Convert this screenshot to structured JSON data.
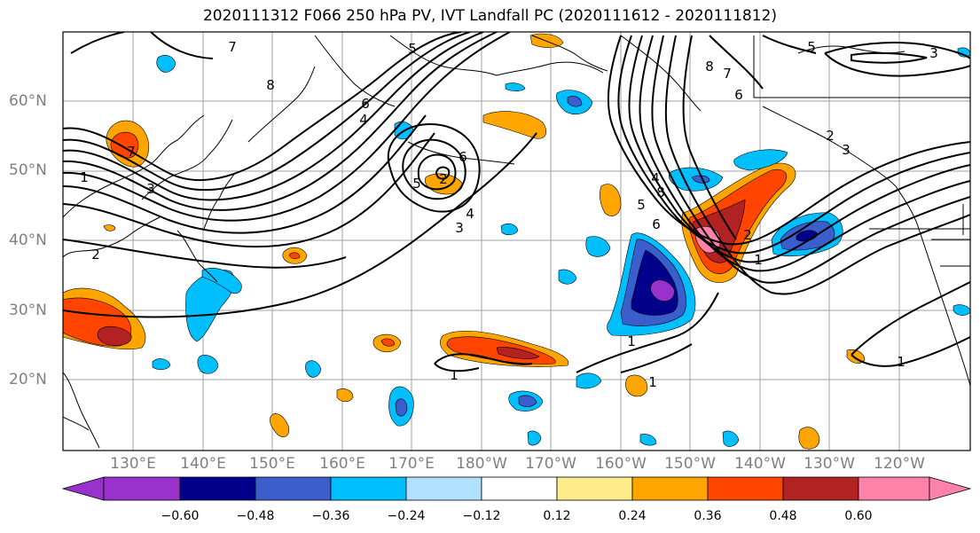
{
  "title": "2020111312 F066 250 hPa PV, IVT Landfall PC (2020111612 - 2020111812)",
  "lat_labels": [
    "60°N",
    "50°N",
    "40°N",
    "30°N",
    "20°N"
  ],
  "lon_labels": [
    "130°E",
    "140°E",
    "150°E",
    "160°E",
    "170°E",
    "180°W",
    "170°W",
    "160°W",
    "150°W",
    "140°W",
    "130°W",
    "120°W"
  ],
  "contour_labels": [
    "8",
    "7",
    "6",
    "5",
    "4",
    "3",
    "2",
    "1",
    "8",
    "7",
    "6",
    "5",
    "4",
    "3",
    "2",
    "1",
    "6",
    "5",
    "4",
    "3",
    "1",
    "1",
    "1",
    "8",
    "7",
    "6",
    "5",
    "2",
    "1",
    "2",
    "3"
  ],
  "colorbar": {
    "labels": [
      "−0.60",
      "−0.48",
      "−0.36",
      "−0.24",
      "−0.12",
      "0.12",
      "0.24",
      "0.36",
      "0.48",
      "0.60"
    ],
    "colors": [
      "#9932cc",
      "#00008b",
      "#3a5fcd",
      "#00bfff",
      "#b0e2ff",
      "#ffffff",
      "#ffec8b",
      "#ffa500",
      "#ff4500",
      "#b22222",
      "#ff82ab"
    ]
  },
  "map": {
    "coastline_color": "#000000",
    "grid_color": "#a0a0a0",
    "contour_color": "#000000"
  }
}
